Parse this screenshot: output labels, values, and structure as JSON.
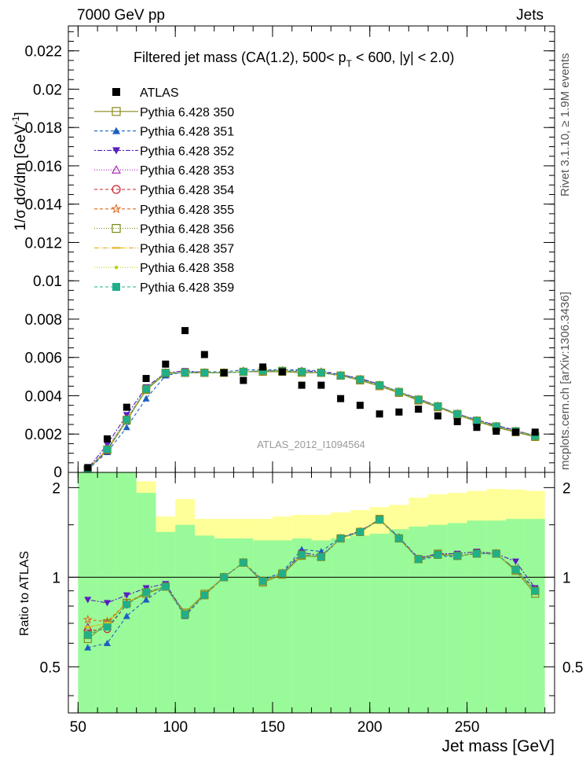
{
  "header": {
    "energy_label": "7000 GeV pp",
    "process_label": "Jets",
    "side_events": "Rivet 3.1.10, ≥ 1.9M events",
    "side_source": "mcplots.cern.ch [arXiv:1306.3436]",
    "analysis_id": "ATLAS_2012_I1094564"
  },
  "chart_data": [
    {
      "type": "scatter",
      "title": "Filtered jet mass  (CA(1.2), 500< p",
      "title_sub": "T",
      "title_tail": " < 600, |y| < 2.0)",
      "ylabel": "1/σ dσ/dm [GeV",
      "ylabel_sup": "-1",
      "ylabel_tail": "]",
      "xlim": [
        45,
        295
      ],
      "ylim": [
        0,
        0.0233
      ],
      "y_ticks": [
        "0.002",
        "0.004",
        "0.006",
        "0.008",
        "0.01",
        "0.012",
        "0.014",
        "0.016",
        "0.018",
        "0.02",
        "0.022"
      ],
      "y_tick_values": [
        0.002,
        0.004,
        0.006,
        0.008,
        0.01,
        0.012,
        0.014,
        0.016,
        0.018,
        0.02,
        0.022
      ],
      "legend_position": "top-left",
      "x": [
        55,
        65,
        75,
        85,
        95,
        105,
        115,
        125,
        135,
        145,
        155,
        165,
        175,
        185,
        195,
        205,
        215,
        225,
        235,
        245,
        255,
        265,
        275,
        285
      ],
      "atlas": {
        "name": "ATLAS",
        "values": [
          0.00025,
          0.00175,
          0.0034,
          0.0049,
          0.00565,
          0.0074,
          0.00615,
          0.0052,
          0.0048,
          0.0055,
          0.00525,
          0.00455,
          0.00455,
          0.00385,
          0.0035,
          0.00305,
          0.00315,
          0.0033,
          0.00295,
          0.00265,
          0.00235,
          0.00215,
          0.0021,
          0.0021
        ]
      },
      "series": [
        {
          "name": "Pythia 6.428 350",
          "color": "#8a8a1e",
          "marker": "square-open",
          "dash": "solid",
          "values": [
            0.00015,
            0.00115,
            0.0027,
            0.0043,
            0.00515,
            0.0052,
            0.0052,
            0.0052,
            0.00525,
            0.00525,
            0.00525,
            0.0052,
            0.0052,
            0.00505,
            0.0048,
            0.0045,
            0.00415,
            0.00375,
            0.0034,
            0.003,
            0.00265,
            0.00235,
            0.0021,
            0.00185
          ]
        },
        {
          "name": "Pythia 6.428 351",
          "color": "#1a5fbf",
          "marker": "triangle-up",
          "dash": "4,3",
          "values": [
            0.00015,
            0.00105,
            0.00235,
            0.00385,
            0.00505,
            0.00525,
            0.00525,
            0.00525,
            0.00535,
            0.00535,
            0.00535,
            0.00535,
            0.0053,
            0.0051,
            0.0049,
            0.0046,
            0.0042,
            0.00385,
            0.00345,
            0.00305,
            0.00275,
            0.00245,
            0.0022,
            0.0019
          ]
        },
        {
          "name": "Pythia 6.428 352",
          "color": "#5a1fbf",
          "marker": "triangle-down",
          "dash": "2,2,6,2",
          "values": [
            0.0002,
            0.00145,
            0.003,
            0.00445,
            0.0052,
            0.0053,
            0.0052,
            0.0052,
            0.00525,
            0.0053,
            0.0053,
            0.0053,
            0.00525,
            0.0051,
            0.0049,
            0.0046,
            0.0042,
            0.00385,
            0.00345,
            0.00305,
            0.00275,
            0.00245,
            0.0022,
            0.0019
          ]
        },
        {
          "name": "Pythia 6.428 353",
          "color": "#a01fb0",
          "marker": "triangle-open",
          "dash": "1,2",
          "values": [
            0.00018,
            0.00125,
            0.0028,
            0.00435,
            0.0052,
            0.0052,
            0.0052,
            0.0052,
            0.00525,
            0.0053,
            0.0053,
            0.00525,
            0.0052,
            0.00505,
            0.00485,
            0.00455,
            0.0042,
            0.0038,
            0.00345,
            0.00305,
            0.0027,
            0.0024,
            0.00215,
            0.0019
          ]
        },
        {
          "name": "Pythia 6.428 354",
          "color": "#cc1f2a",
          "marker": "circle-open",
          "dash": "4,3",
          "values": [
            0.00017,
            0.00115,
            0.00275,
            0.00435,
            0.0052,
            0.0052,
            0.0052,
            0.0052,
            0.00525,
            0.0053,
            0.0053,
            0.00525,
            0.0052,
            0.00505,
            0.00485,
            0.00455,
            0.0042,
            0.0038,
            0.00345,
            0.00305,
            0.0027,
            0.0024,
            0.00215,
            0.0019
          ]
        },
        {
          "name": "Pythia 6.428 355",
          "color": "#e0661a",
          "marker": "star-open",
          "dash": "4,3",
          "values": [
            0.00018,
            0.0012,
            0.00275,
            0.00435,
            0.0052,
            0.0052,
            0.0052,
            0.0052,
            0.00525,
            0.0053,
            0.0053,
            0.00525,
            0.0052,
            0.00505,
            0.00485,
            0.00455,
            0.0042,
            0.0038,
            0.00345,
            0.00305,
            0.0027,
            0.0024,
            0.00215,
            0.0019
          ]
        },
        {
          "name": "Pythia 6.428 356",
          "color": "#7a8a10",
          "marker": "square-open",
          "dash": "1,2",
          "values": [
            0.00016,
            0.0012,
            0.00275,
            0.00435,
            0.0052,
            0.0052,
            0.0052,
            0.0052,
            0.00525,
            0.0053,
            0.0053,
            0.00525,
            0.0052,
            0.00505,
            0.00485,
            0.00455,
            0.0042,
            0.0038,
            0.00345,
            0.00305,
            0.0027,
            0.0024,
            0.00215,
            0.0019
          ]
        },
        {
          "name": "Pythia 6.428 357",
          "color": "#e8b012",
          "marker": "dash",
          "dash": "6,2,1,2",
          "values": [
            0.00017,
            0.0012,
            0.00275,
            0.00435,
            0.0052,
            0.0052,
            0.0052,
            0.0052,
            0.00525,
            0.0053,
            0.0053,
            0.00525,
            0.0052,
            0.00505,
            0.00485,
            0.00455,
            0.0042,
            0.0038,
            0.00345,
            0.00305,
            0.0027,
            0.0024,
            0.00215,
            0.0019
          ]
        },
        {
          "name": "Pythia 6.428 358",
          "color": "#b8d41a",
          "marker": "dot",
          "dash": "1,2",
          "values": [
            0.00017,
            0.0012,
            0.00275,
            0.00435,
            0.0052,
            0.0052,
            0.0052,
            0.0052,
            0.00525,
            0.0053,
            0.0053,
            0.00525,
            0.0052,
            0.00505,
            0.00485,
            0.00455,
            0.0042,
            0.0038,
            0.00345,
            0.00305,
            0.0027,
            0.0024,
            0.00215,
            0.0019
          ]
        },
        {
          "name": "Pythia 6.428 359",
          "color": "#1fb08a",
          "marker": "square",
          "dash": "4,3",
          "values": [
            0.00017,
            0.0012,
            0.00275,
            0.00435,
            0.0052,
            0.0052,
            0.0052,
            0.0052,
            0.00525,
            0.0053,
            0.0053,
            0.00525,
            0.0052,
            0.00505,
            0.00485,
            0.00455,
            0.0042,
            0.0038,
            0.00345,
            0.00305,
            0.0027,
            0.0024,
            0.00215,
            0.0019
          ]
        }
      ]
    },
    {
      "type": "line",
      "ylabel": "Ratio to ATLAS",
      "xlabel": "Jet mass [GeV]",
      "xlim": [
        45,
        295
      ],
      "ylim": [
        0.35,
        2.25
      ],
      "x_ticks": [
        "50",
        "100",
        "150",
        "200",
        "250"
      ],
      "x_tick_values": [
        50,
        100,
        150,
        200,
        250
      ],
      "y_ticks": [
        "0.5",
        "1",
        "2"
      ],
      "y_tick_values": [
        0.5,
        1,
        2
      ],
      "reference_line": 1,
      "x": [
        55,
        65,
        75,
        85,
        95,
        105,
        115,
        125,
        135,
        145,
        155,
        165,
        175,
        185,
        195,
        205,
        215,
        225,
        235,
        245,
        255,
        265,
        275,
        285
      ],
      "band_edges": [
        50,
        60,
        70,
        80,
        90,
        100,
        110,
        120,
        130,
        140,
        150,
        160,
        170,
        180,
        190,
        200,
        210,
        220,
        230,
        240,
        250,
        260,
        270,
        280,
        290
      ],
      "band_inner": {
        "color": "#99fa99",
        "lower": [
          0.35,
          0.35,
          0.35,
          0.35,
          0.35,
          0.35,
          0.35,
          0.35,
          0.35,
          0.35,
          0.35,
          0.35,
          0.35,
          0.35,
          0.35,
          0.35,
          0.35,
          0.35,
          0.35,
          0.35,
          0.35,
          0.35,
          0.35,
          0.35
        ],
        "upper": [
          2.25,
          2.25,
          2.25,
          1.92,
          1.42,
          1.5,
          1.38,
          1.35,
          1.35,
          1.33,
          1.33,
          1.35,
          1.33,
          1.35,
          1.38,
          1.4,
          1.45,
          1.48,
          1.5,
          1.52,
          1.55,
          1.55,
          1.57,
          1.57
        ]
      },
      "band_outer": {
        "color": "#ffff99",
        "lower": [
          0.35,
          0.35,
          0.35,
          0.35,
          0.35,
          0.35,
          0.35,
          0.35,
          0.35,
          0.35,
          0.35,
          0.35,
          0.35,
          0.35,
          0.35,
          0.35,
          0.35,
          0.35,
          0.35,
          0.35,
          0.35,
          0.35,
          0.35,
          0.35
        ],
        "upper": [
          2.25,
          2.25,
          2.25,
          2.1,
          1.6,
          1.83,
          1.57,
          1.57,
          1.57,
          1.57,
          1.6,
          1.62,
          1.62,
          1.65,
          1.68,
          1.72,
          1.75,
          1.85,
          1.9,
          1.92,
          1.95,
          1.98,
          1.97,
          1.95
        ]
      },
      "series": [
        {
          "name": "Pythia 6.428 350",
          "color": "#8a8a1e",
          "marker": "square-open",
          "dash": "solid",
          "values": [
            0.62,
            0.7,
            0.82,
            0.88,
            0.93,
            0.76,
            0.88,
            1.0,
            1.12,
            0.96,
            1.02,
            1.18,
            1.17,
            1.35,
            1.42,
            1.57,
            1.35,
            1.15,
            1.2,
            1.18,
            1.2,
            1.2,
            1.05,
            0.88
          ]
        },
        {
          "name": "Pythia 6.428 351",
          "color": "#1a5fbf",
          "marker": "triangle-up",
          "dash": "4,3",
          "values": [
            0.58,
            0.6,
            0.74,
            0.84,
            0.93,
            0.74,
            0.87,
            1.0,
            1.12,
            0.98,
            1.04,
            1.24,
            1.22,
            1.36,
            1.43,
            1.55,
            1.37,
            1.14,
            1.18,
            1.17,
            1.21,
            1.19,
            1.07,
            0.91
          ]
        },
        {
          "name": "Pythia 6.428 352",
          "color": "#5a1fbf",
          "marker": "triangle-down",
          "dash": "2,2,6,2",
          "values": [
            0.84,
            0.82,
            0.87,
            0.92,
            0.95,
            0.75,
            0.87,
            1.0,
            1.12,
            0.97,
            1.03,
            1.21,
            1.18,
            1.35,
            1.43,
            1.56,
            1.36,
            1.16,
            1.2,
            1.2,
            1.22,
            1.2,
            1.13,
            0.92
          ]
        },
        {
          "name": "Pythia 6.428 353",
          "color": "#a01fb0",
          "marker": "triangle-open",
          "dash": "1,2",
          "values": [
            0.68,
            0.7,
            0.82,
            0.89,
            0.93,
            0.75,
            0.87,
            1.0,
            1.12,
            0.97,
            1.03,
            1.19,
            1.17,
            1.35,
            1.42,
            1.56,
            1.35,
            1.15,
            1.19,
            1.18,
            1.2,
            1.2,
            1.06,
            0.9
          ]
        },
        {
          "name": "Pythia 6.428 354",
          "color": "#cc1f2a",
          "marker": "circle-open",
          "dash": "4,3",
          "values": [
            0.66,
            0.67,
            0.81,
            0.89,
            0.93,
            0.75,
            0.87,
            1.0,
            1.12,
            0.97,
            1.03,
            1.19,
            1.17,
            1.35,
            1.42,
            1.56,
            1.35,
            1.15,
            1.19,
            1.18,
            1.2,
            1.2,
            1.06,
            0.9
          ]
        },
        {
          "name": "Pythia 6.428 355",
          "color": "#e0661a",
          "marker": "star-open",
          "dash": "4,3",
          "values": [
            0.72,
            0.71,
            0.82,
            0.89,
            0.93,
            0.75,
            0.87,
            1.0,
            1.12,
            0.97,
            1.03,
            1.19,
            1.17,
            1.35,
            1.42,
            1.56,
            1.35,
            1.15,
            1.19,
            1.18,
            1.2,
            1.2,
            1.06,
            0.9
          ]
        },
        {
          "name": "Pythia 6.428 356",
          "color": "#7a8a10",
          "marker": "square-open",
          "dash": "1,2",
          "values": [
            0.64,
            0.7,
            0.82,
            0.89,
            0.93,
            0.75,
            0.87,
            1.0,
            1.12,
            0.97,
            1.03,
            1.19,
            1.17,
            1.35,
            1.42,
            1.56,
            1.35,
            1.15,
            1.19,
            1.18,
            1.2,
            1.2,
            1.06,
            0.9
          ]
        },
        {
          "name": "Pythia 6.428 357",
          "color": "#e8b012",
          "marker": "dash",
          "dash": "6,2,1,2",
          "values": [
            0.68,
            0.7,
            0.82,
            0.89,
            0.93,
            0.75,
            0.87,
            1.0,
            1.12,
            0.97,
            1.03,
            1.19,
            1.17,
            1.35,
            1.42,
            1.56,
            1.35,
            1.15,
            1.19,
            1.18,
            1.2,
            1.2,
            1.06,
            0.9
          ]
        },
        {
          "name": "Pythia 6.428 358",
          "color": "#b8d41a",
          "marker": "dot",
          "dash": "1,2",
          "values": [
            0.68,
            0.7,
            0.82,
            0.89,
            0.93,
            0.75,
            0.87,
            1.0,
            1.12,
            0.97,
            1.03,
            1.19,
            1.17,
            1.35,
            1.42,
            1.56,
            1.35,
            1.15,
            1.19,
            1.18,
            1.2,
            1.2,
            1.06,
            0.9
          ]
        },
        {
          "name": "Pythia 6.428 359",
          "color": "#1fb08a",
          "marker": "square",
          "dash": "4,3",
          "values": [
            0.64,
            0.68,
            0.81,
            0.89,
            0.93,
            0.75,
            0.87,
            1.0,
            1.12,
            0.97,
            1.03,
            1.19,
            1.17,
            1.35,
            1.42,
            1.56,
            1.35,
            1.15,
            1.19,
            1.18,
            1.2,
            1.2,
            1.06,
            0.9
          ]
        }
      ]
    }
  ]
}
